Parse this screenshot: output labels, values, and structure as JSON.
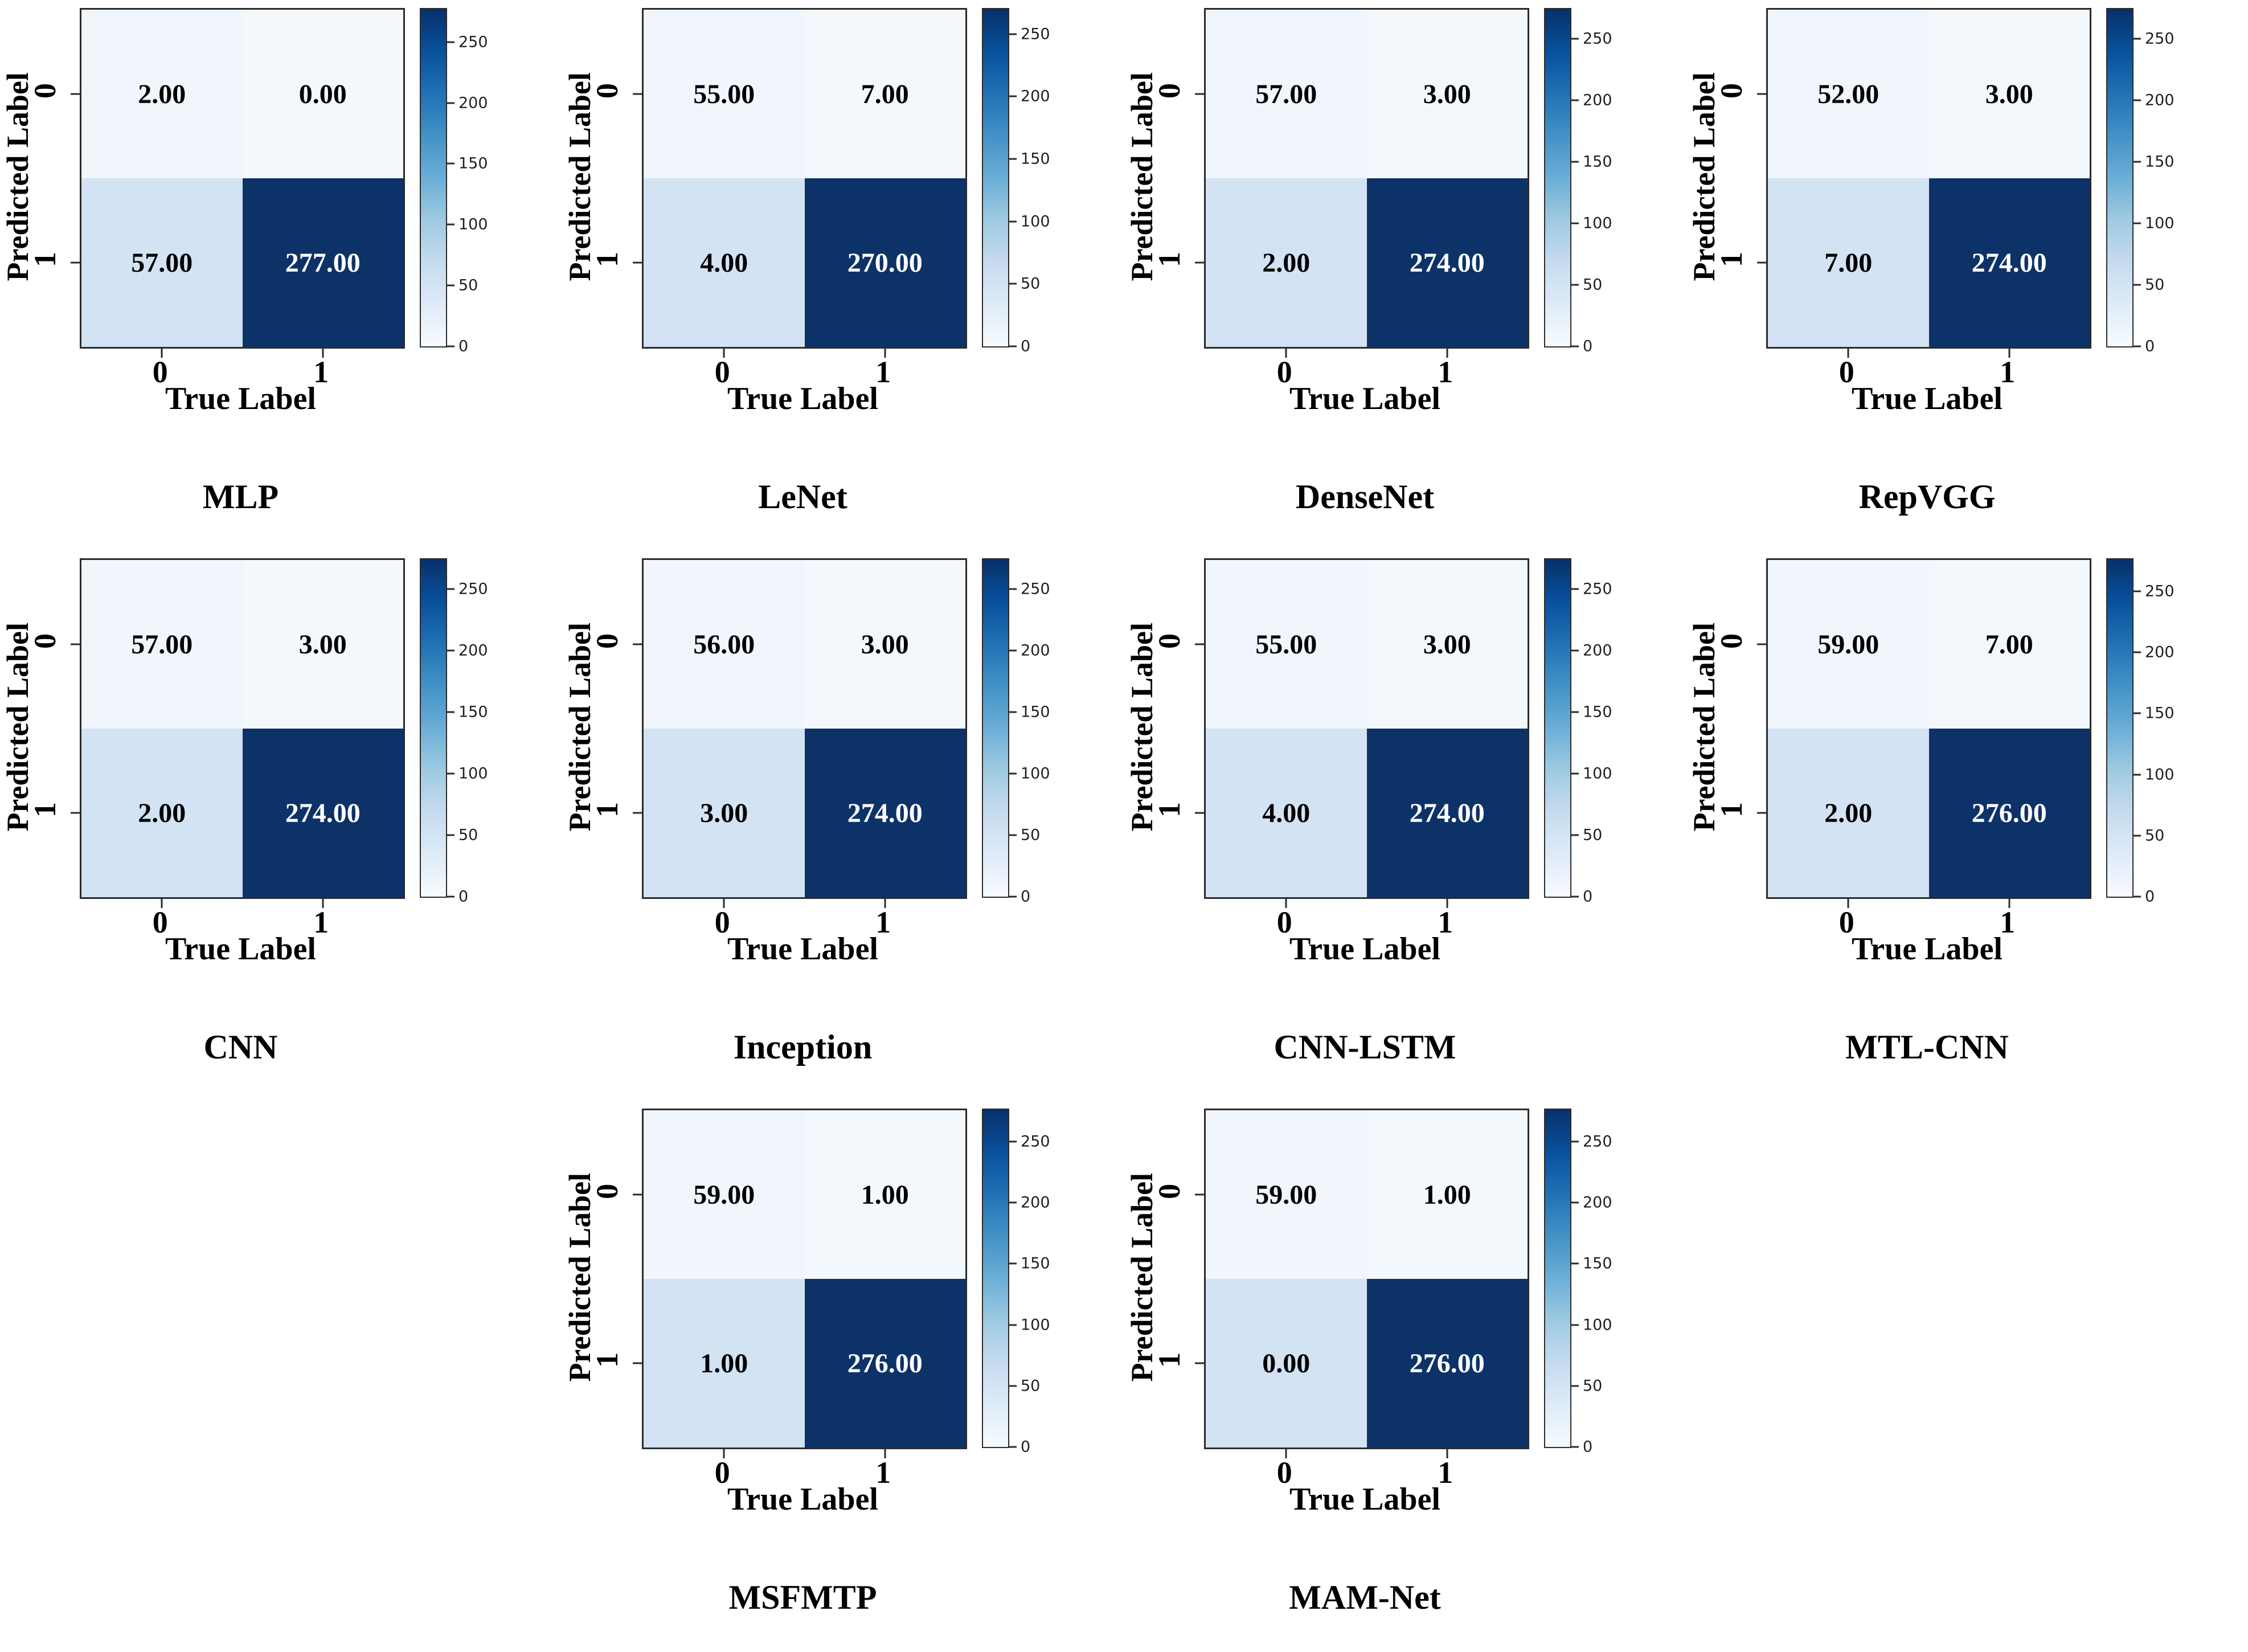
{
  "figure": {
    "background": "#ffffff",
    "xlabel": "True Label",
    "ylabel": "Predicted Label",
    "x_tick_labels": [
      "0",
      "1"
    ],
    "y_tick_labels": [
      "0",
      "1"
    ],
    "spine_color": "#2b2b2b",
    "cell_colors": [
      [
        "#f0f6fc",
        "#f3f8fd"
      ],
      [
        "#d3e3f3",
        "#0c3268"
      ]
    ],
    "cell_text_colors": [
      [
        "#000000",
        "#000000"
      ],
      [
        "#000000",
        "#ffffff"
      ]
    ],
    "colorbar": {
      "ticks": [
        0,
        50,
        100,
        150,
        200,
        250
      ],
      "tick_color": "#1f1f1f"
    },
    "colormap": "Blues",
    "colormap_stops": [
      [
        0,
        "#f7fbff"
      ],
      [
        0.125,
        "#deebf7"
      ],
      [
        0.25,
        "#c6dbef"
      ],
      [
        0.375,
        "#9ecae1"
      ],
      [
        0.5,
        "#6baed6"
      ],
      [
        0.625,
        "#4292c6"
      ],
      [
        0.75,
        "#2171b5"
      ],
      [
        0.875,
        "#08519c"
      ],
      [
        1,
        "#08306b"
      ]
    ]
  },
  "chart_data": [
    {
      "type": "heatmap",
      "title": "MLP",
      "x": [
        "0",
        "1"
      ],
      "y": [
        "0",
        "1"
      ],
      "xlabel": "True Label",
      "ylabel": "Predicted Label",
      "values": [
        [
          2,
          0
        ],
        [
          57,
          277
        ]
      ],
      "labels": [
        [
          "2.00",
          "0.00"
        ],
        [
          "57.00",
          "277.00"
        ]
      ],
      "colorbar_ticks": [
        0,
        50,
        100,
        150,
        200,
        250
      ]
    },
    {
      "type": "heatmap",
      "title": "LeNet",
      "x": [
        "0",
        "1"
      ],
      "y": [
        "0",
        "1"
      ],
      "xlabel": "True Label",
      "ylabel": "Predicted Label",
      "values": [
        [
          55,
          7
        ],
        [
          4,
          270
        ]
      ],
      "labels": [
        [
          "55.00",
          "7.00"
        ],
        [
          "4.00",
          "270.00"
        ]
      ],
      "colorbar_ticks": [
        0,
        50,
        100,
        150,
        200,
        250
      ]
    },
    {
      "type": "heatmap",
      "title": "DenseNet",
      "x": [
        "0",
        "1"
      ],
      "y": [
        "0",
        "1"
      ],
      "xlabel": "True Label",
      "ylabel": "Predicted Label",
      "values": [
        [
          57,
          3
        ],
        [
          2,
          274
        ]
      ],
      "labels": [
        [
          "57.00",
          "3.00"
        ],
        [
          "2.00",
          "274.00"
        ]
      ],
      "colorbar_ticks": [
        0,
        50,
        100,
        150,
        200,
        250
      ]
    },
    {
      "type": "heatmap",
      "title": "RepVGG",
      "x": [
        "0",
        "1"
      ],
      "y": [
        "0",
        "1"
      ],
      "xlabel": "True Label",
      "ylabel": "Predicted Label",
      "values": [
        [
          52,
          3
        ],
        [
          7,
          274
        ]
      ],
      "labels": [
        [
          "52.00",
          "3.00"
        ],
        [
          "7.00",
          "274.00"
        ]
      ],
      "colorbar_ticks": [
        0,
        50,
        100,
        150,
        200,
        250
      ]
    },
    {
      "type": "heatmap",
      "title": "CNN",
      "x": [
        "0",
        "1"
      ],
      "y": [
        "0",
        "1"
      ],
      "xlabel": "True Label",
      "ylabel": "Predicted Label",
      "values": [
        [
          57,
          3
        ],
        [
          2,
          274
        ]
      ],
      "labels": [
        [
          "57.00",
          "3.00"
        ],
        [
          "2.00",
          "274.00"
        ]
      ],
      "colorbar_ticks": [
        0,
        50,
        100,
        150,
        200,
        250
      ]
    },
    {
      "type": "heatmap",
      "title": "Inception",
      "x": [
        "0",
        "1"
      ],
      "y": [
        "0",
        "1"
      ],
      "xlabel": "True Label",
      "ylabel": "Predicted Label",
      "values": [
        [
          56,
          3
        ],
        [
          3,
          274
        ]
      ],
      "labels": [
        [
          "56.00",
          "3.00"
        ],
        [
          "3.00",
          "274.00"
        ]
      ],
      "colorbar_ticks": [
        0,
        50,
        100,
        150,
        200,
        250
      ]
    },
    {
      "type": "heatmap",
      "title": "CNN-LSTM",
      "x": [
        "0",
        "1"
      ],
      "y": [
        "0",
        "1"
      ],
      "xlabel": "True Label",
      "ylabel": "Predicted Label",
      "values": [
        [
          55,
          3
        ],
        [
          4,
          274
        ]
      ],
      "labels": [
        [
          "55.00",
          "3.00"
        ],
        [
          "4.00",
          "274.00"
        ]
      ],
      "colorbar_ticks": [
        0,
        50,
        100,
        150,
        200,
        250
      ]
    },
    {
      "type": "heatmap",
      "title": "MTL-CNN",
      "x": [
        "0",
        "1"
      ],
      "y": [
        "0",
        "1"
      ],
      "xlabel": "True Label",
      "ylabel": "Predicted Label",
      "values": [
        [
          59,
          7
        ],
        [
          2,
          276
        ]
      ],
      "labels": [
        [
          "59.00",
          "7.00"
        ],
        [
          "2.00",
          "276.00"
        ]
      ],
      "colorbar_ticks": [
        0,
        50,
        100,
        150,
        200,
        250
      ]
    },
    {
      "type": "heatmap",
      "title": "MSFMTP",
      "x": [
        "0",
        "1"
      ],
      "y": [
        "0",
        "1"
      ],
      "xlabel": "True Label",
      "ylabel": "Predicted Label",
      "values": [
        [
          59,
          1
        ],
        [
          1,
          276
        ]
      ],
      "labels": [
        [
          "59.00",
          "1.00"
        ],
        [
          "1.00",
          "276.00"
        ]
      ],
      "colorbar_ticks": [
        0,
        50,
        100,
        150,
        200,
        250
      ]
    },
    {
      "type": "heatmap",
      "title": "MAM-Net",
      "x": [
        "0",
        "1"
      ],
      "y": [
        "0",
        "1"
      ],
      "xlabel": "True Label",
      "ylabel": "Predicted Label",
      "values": [
        [
          59,
          1
        ],
        [
          0,
          276
        ]
      ],
      "labels": [
        [
          "59.00",
          "1.00"
        ],
        [
          "0.00",
          "276.00"
        ]
      ],
      "colorbar_ticks": [
        0,
        50,
        100,
        150,
        200,
        250
      ]
    }
  ]
}
